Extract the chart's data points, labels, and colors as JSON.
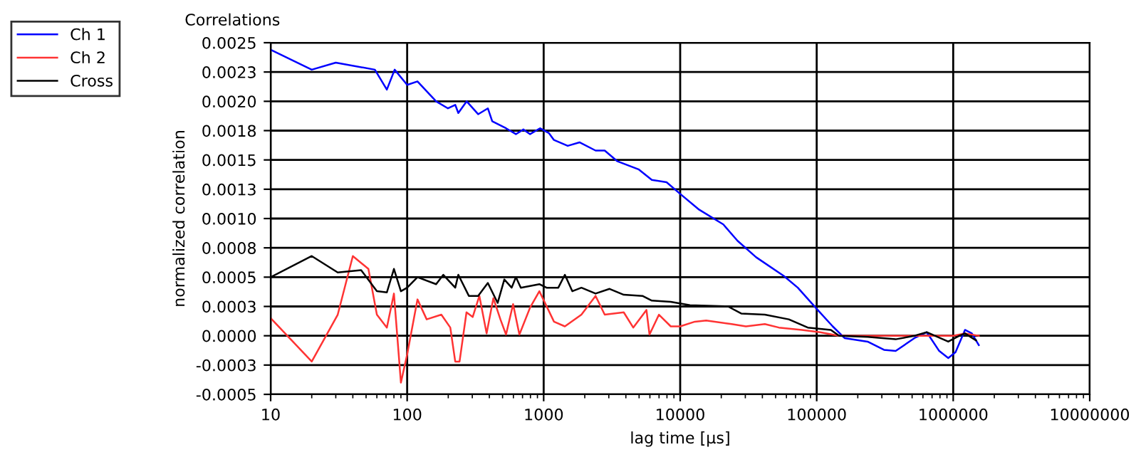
{
  "chart_data": {
    "type": "line",
    "title": "Correlations",
    "xlabel": "lag time [µs]",
    "ylabel": "normalized correlation",
    "log": "x",
    "grid": true,
    "legend": "top left",
    "marker": "none",
    "line_style": "solid",
    "xlim": [
      10,
      10000000
    ],
    "xticks": [
      10,
      100,
      1000,
      10000,
      100000,
      1000000,
      10000000
    ],
    "ylim": [
      -0.0005,
      0.0025
    ],
    "yticks": [
      {
        "value": -0.0005,
        "label": "-0.0005"
      },
      {
        "value": -0.00025,
        "label": "-0.0003"
      },
      {
        "value": 0,
        "label": "0.0000"
      },
      {
        "value": 0.00025,
        "label": "0.0003"
      },
      {
        "value": 0.0005,
        "label": "0.0005"
      },
      {
        "value": 0.00075,
        "label": "0.0008"
      },
      {
        "value": 0.001,
        "label": "0.0010"
      },
      {
        "value": 0.00125,
        "label": "0.0013"
      },
      {
        "value": 0.0015,
        "label": "0.0015"
      },
      {
        "value": 0.00175,
        "label": "0.0018"
      },
      {
        "value": 0.002,
        "label": "0.0020"
      },
      {
        "value": 0.00225,
        "label": "0.0023"
      },
      {
        "value": 0.0025,
        "label": "0.0025"
      }
    ],
    "series": [
      {
        "name": "Ch 1",
        "color": "#0000ff",
        "x": [
          10,
          20,
          30,
          58,
          71,
          81,
          100,
          119,
          163,
          199,
          225,
          237,
          273,
          331,
          390,
          420,
          530,
          626,
          710,
          795,
          940,
          1090,
          1190,
          1500,
          1830,
          2400,
          2800,
          3450,
          4950,
          6200,
          7950,
          10000,
          13600,
          20700,
          26300,
          36000,
          57500,
          72700,
          100000,
          131000,
          160000,
          236000,
          311000,
          379000,
          520000,
          640000,
          790000,
          920000,
          1040000,
          1220000,
          1370000,
          1540000
        ],
        "values": [
          0.00244,
          0.00227,
          0.00233,
          0.00227,
          0.0021,
          0.00227,
          0.00214,
          0.00217,
          0.002,
          0.00194,
          0.00197,
          0.0019,
          0.002,
          0.00189,
          0.00194,
          0.00183,
          0.00177,
          0.00172,
          0.00176,
          0.00172,
          0.00177,
          0.00173,
          0.00167,
          0.00162,
          0.00165,
          0.00158,
          0.00158,
          0.00149,
          0.00142,
          0.00133,
          0.00131,
          0.00121,
          0.00108,
          0.00095,
          0.00081,
          0.00067,
          0.00051,
          0.00041,
          0.00023,
          8e-05,
          -2e-05,
          -5e-05,
          -0.00012,
          -0.00013,
          -2e-05,
          3e-05,
          -0.00013,
          -0.00019,
          -0.00014,
          5e-05,
          2e-05,
          -8e-05
        ]
      },
      {
        "name": "Ch 2",
        "color": "#ff3333",
        "x": [
          10,
          20,
          31,
          40,
          52,
          60,
          71,
          80,
          90,
          100,
          119,
          139,
          178,
          207,
          225,
          242,
          272,
          302,
          338,
          382,
          428,
          482,
          530,
          597,
          664,
          795,
          930,
          1190,
          1430,
          1890,
          2400,
          2800,
          3860,
          4530,
          5660,
          5960,
          6990,
          8530,
          10000,
          12800,
          15500,
          23800,
          30300,
          41700,
          52800,
          78000,
          106000,
          146000,
          1000000,
          1220000,
          1540000
        ],
        "values": [
          0.00015,
          -0.00022,
          0.00018,
          0.00068,
          0.00057,
          0.00018,
          7e-05,
          0.00036,
          -0.0004,
          -0.00016,
          0.00031,
          0.00014,
          0.00018,
          7e-05,
          -0.00022,
          -0.00022,
          0.0002,
          0.00016,
          0.00034,
          2e-05,
          0.00032,
          0.00014,
          1e-05,
          0.00027,
          1e-05,
          0.00024,
          0.00038,
          0.00012,
          8e-05,
          0.00018,
          0.00034,
          0.00018,
          0.0002,
          7e-05,
          0.00022,
          1e-05,
          0.00018,
          8e-05,
          8e-05,
          0.00012,
          0.00013,
          0.0001,
          8e-05,
          0.0001,
          7e-05,
          5e-05,
          3e-05,
          0.0,
          0.0,
          2e-05,
          0.0
        ]
      },
      {
        "name": "Cross",
        "color": "#000000",
        "x": [
          10,
          20,
          31,
          46,
          60,
          71,
          80,
          90,
          100,
          119,
          163,
          184,
          225,
          237,
          283,
          331,
          390,
          460,
          515,
          583,
          626,
          680,
          930,
          1050,
          1280,
          1430,
          1620,
          1890,
          2400,
          3040,
          3860,
          5290,
          6200,
          8530,
          11800,
          22400,
          28000,
          41700,
          62500,
          86000,
          127000,
          146000,
          236000,
          379000,
          520000,
          640000,
          920000,
          1110000,
          1220000,
          1470000
        ],
        "values": [
          0.0005,
          0.00068,
          0.00054,
          0.00056,
          0.00038,
          0.00037,
          0.00057,
          0.00038,
          0.00041,
          0.0005,
          0.00044,
          0.00052,
          0.00041,
          0.00052,
          0.00034,
          0.00034,
          0.00045,
          0.00028,
          0.00048,
          0.00041,
          0.0005,
          0.00041,
          0.00044,
          0.00041,
          0.00041,
          0.00052,
          0.00038,
          0.00041,
          0.00036,
          0.0004,
          0.00035,
          0.00034,
          0.0003,
          0.00029,
          0.00026,
          0.00025,
          0.00019,
          0.00018,
          0.00014,
          7e-05,
          5e-05,
          0.0,
          -1e-05,
          -3e-05,
          0.0,
          3e-05,
          -5e-05,
          0.0,
          2e-05,
          -4e-05
        ]
      }
    ]
  }
}
